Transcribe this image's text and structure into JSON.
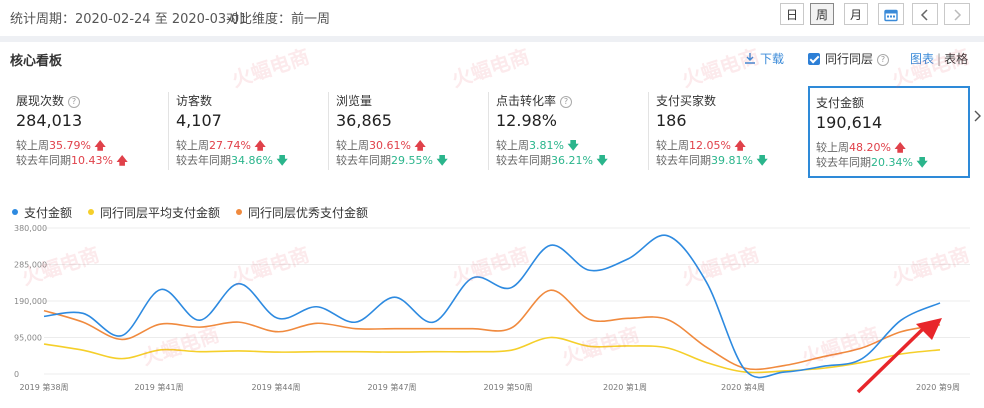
{
  "header": {
    "period_label": "统计周期：",
    "period_value": "2020-02-24 至 2020-03-01",
    "compare_label": "对比维度：",
    "compare_value": "前一周",
    "btn_day": "日",
    "btn_week": "周",
    "btn_month": "月",
    "calendar_icon": "calendar-icon",
    "prev_icon": "chevron-left-icon",
    "next_icon": "chevron-right-icon"
  },
  "panel": {
    "title": "核心看板",
    "download_icon": "download-icon",
    "download_label": "下载",
    "peer_label": "同行同层",
    "peer_checked": true,
    "view_chart": "图表",
    "view_sep": "|",
    "view_table": "表格"
  },
  "metrics": [
    {
      "label": "展现次数",
      "has_help": true,
      "value": "284,013",
      "wk_prefix": "较上周",
      "wk_val": "35.79%",
      "wk_dir": "up",
      "yr_prefix": "较去年同期",
      "yr_val": "10.43%",
      "yr_dir": "up"
    },
    {
      "label": "访客数",
      "has_help": false,
      "value": "4,107",
      "wk_prefix": "较上周",
      "wk_val": "27.74%",
      "wk_dir": "up",
      "yr_prefix": "较去年同期",
      "yr_val": "34.86%",
      "yr_dir": "down"
    },
    {
      "label": "浏览量",
      "has_help": false,
      "value": "36,865",
      "wk_prefix": "较上周",
      "wk_val": "30.61%",
      "wk_dir": "up",
      "yr_prefix": "较去年同期",
      "yr_val": "29.55%",
      "yr_dir": "down"
    },
    {
      "label": "点击转化率",
      "has_help": true,
      "value": "12.98%",
      "wk_prefix": "较上周",
      "wk_val": "3.81%",
      "wk_dir": "down",
      "yr_prefix": "较去年同期",
      "yr_val": "36.21%",
      "yr_dir": "down"
    },
    {
      "label": "支付买家数",
      "has_help": false,
      "value": "186",
      "wk_prefix": "较上周",
      "wk_val": "12.05%",
      "wk_dir": "up",
      "yr_prefix": "较去年同期",
      "yr_val": "39.81%",
      "yr_dir": "down"
    },
    {
      "label": "支付金额",
      "has_help": false,
      "value": "190,614",
      "wk_prefix": "较上周",
      "wk_val": "48.20%",
      "wk_dir": "up",
      "yr_prefix": "较去年同期",
      "yr_val": "20.34%",
      "yr_dir": "down",
      "selected": true
    }
  ],
  "colors": {
    "blue": "#2d8ae0",
    "yellow": "#f5cf2a",
    "orange": "#f08a3e",
    "up": "#e0414a",
    "down": "#2bb58c",
    "annotation": "#e8262b"
  },
  "watermark_text": "火蝠电商",
  "chart_data": {
    "type": "line",
    "series": [
      {
        "name": "支付金额",
        "color": "#2d8ae0",
        "values": [
          150000,
          158000,
          100000,
          220000,
          140000,
          235000,
          145000,
          175000,
          135000,
          200000,
          135000,
          250000,
          225000,
          335000,
          270000,
          300000,
          360000,
          240000,
          10000,
          5000,
          20000,
          40000,
          140000,
          185000
        ]
      },
      {
        "name": "同行同层平均支付金额",
        "color": "#f5cf2a",
        "values": [
          78000,
          62000,
          40000,
          63000,
          58000,
          60000,
          57000,
          58000,
          58000,
          57000,
          58000,
          58000,
          62000,
          95000,
          72000,
          73000,
          68000,
          30000,
          5000,
          8000,
          15000,
          30000,
          52000,
          63000
        ]
      },
      {
        "name": "同行同层优秀支付金额",
        "color": "#f08a3e",
        "values": [
          165000,
          135000,
          90000,
          130000,
          122000,
          135000,
          110000,
          132000,
          118000,
          118000,
          118000,
          118000,
          120000,
          218000,
          142000,
          145000,
          142000,
          70000,
          15000,
          22000,
          45000,
          68000,
          110000,
          128000
        ]
      }
    ],
    "yticks": [
      "380,000",
      "285,000",
      "190,000",
      "95,000",
      "0"
    ],
    "ylim": [
      0,
      380000
    ],
    "xticks": [
      "2019 第38周",
      "2019 第41周",
      "2019 第44周",
      "2019 第47周",
      "2019 第50周",
      "2020 第1周",
      "2020 第4周",
      "2020 第9周"
    ],
    "grid": true
  }
}
